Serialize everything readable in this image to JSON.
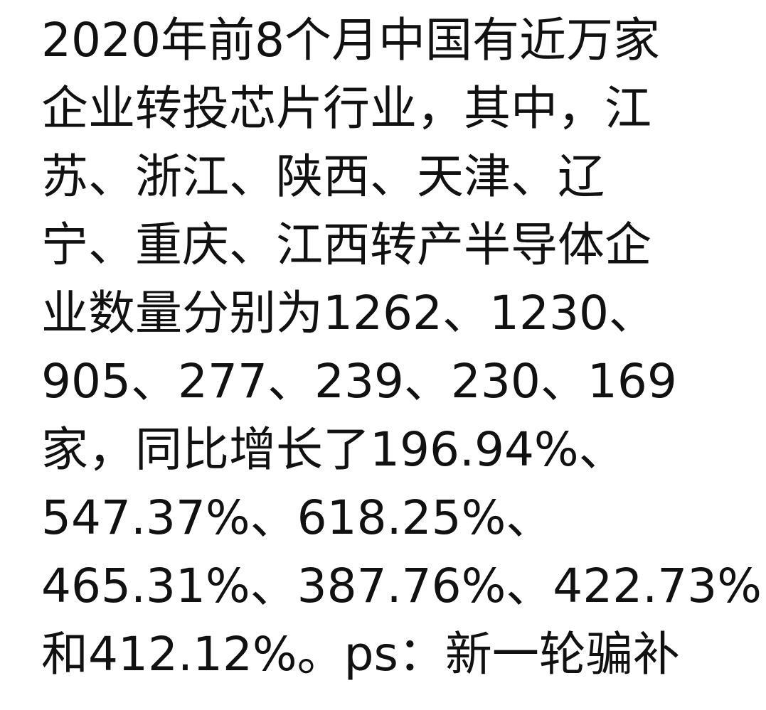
{
  "document": {
    "lines": [
      "2020年前8个月中国有近万家",
      "企业转投芯片行业，其中，江",
      "苏、浙江、陕西、天津、辽",
      "宁、重庆、江西转产半导体企",
      "业数量分别为1262、1230、",
      "905、277、239、230、169",
      "家，同比增长了196.94%、",
      "547.37%、618.25%、",
      "465.31%、387.76%、422.73%",
      "和412.12%。ps：新一轮骗补"
    ]
  },
  "colors": {
    "text": "#111111",
    "background": "#ffffff"
  }
}
